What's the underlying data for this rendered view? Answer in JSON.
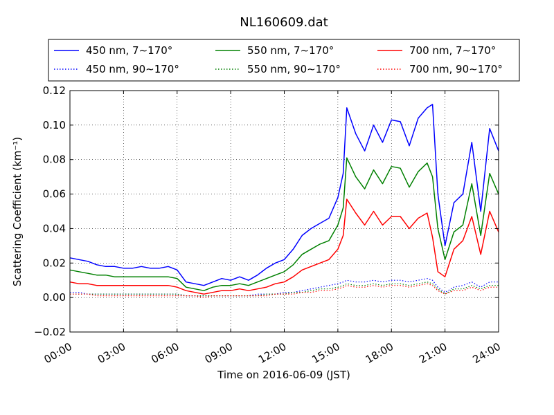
{
  "chart_data": {
    "type": "line",
    "title": "NL160609.dat",
    "xlabel": "Time on 2016-06-09 (JST)",
    "ylabel": "Scattering Coefficient (km⁻¹)",
    "xlim": [
      0,
      24
    ],
    "ylim": [
      -0.02,
      0.12
    ],
    "x_tick_labels": [
      "00:00",
      "03:00",
      "06:00",
      "09:00",
      "12:00",
      "15:00",
      "18:00",
      "21:00",
      "24:00"
    ],
    "y_tick_labels": [
      "−0.02",
      "0.00",
      "0.02",
      "0.04",
      "0.06",
      "0.08",
      "0.10",
      "0.12"
    ],
    "grid": true,
    "legend_placement": "top, above plot",
    "x": [
      0,
      0.5,
      1,
      1.5,
      2,
      2.5,
      3,
      3.5,
      4,
      4.5,
      5,
      5.5,
      6,
      6.5,
      7,
      7.5,
      8,
      8.5,
      9,
      9.5,
      10,
      10.5,
      11,
      11.5,
      12,
      12.5,
      13,
      13.5,
      14,
      14.5,
      15,
      15.3,
      15.5,
      16,
      16.5,
      17,
      17.5,
      18,
      18.5,
      19,
      19.5,
      20,
      20.3,
      20.6,
      21,
      21.5,
      22,
      22.5,
      23,
      23.5,
      24
    ],
    "series": [
      {
        "name": "450 nm, 7∼170°",
        "color": "#0000ff",
        "style": "solid",
        "values": [
          0.023,
          0.022,
          0.021,
          0.019,
          0.018,
          0.018,
          0.017,
          0.017,
          0.018,
          0.017,
          0.017,
          0.018,
          0.016,
          0.009,
          0.008,
          0.007,
          0.009,
          0.011,
          0.01,
          0.012,
          0.01,
          0.013,
          0.017,
          0.02,
          0.022,
          0.028,
          0.036,
          0.04,
          0.043,
          0.046,
          0.058,
          0.072,
          0.11,
          0.095,
          0.085,
          0.1,
          0.09,
          0.103,
          0.102,
          0.088,
          0.104,
          0.11,
          0.112,
          0.06,
          0.03,
          0.055,
          0.06,
          0.09,
          0.05,
          0.098,
          0.085
        ]
      },
      {
        "name": "450 nm, 90∼170°",
        "color": "#0000ff",
        "style": "dotted",
        "values": [
          0.003,
          0.003,
          0.002,
          0.002,
          0.002,
          0.002,
          0.002,
          0.002,
          0.002,
          0.002,
          0.002,
          0.002,
          0.002,
          0.001,
          0.001,
          0.001,
          0.001,
          0.001,
          0.001,
          0.001,
          0.001,
          0.002,
          0.002,
          0.002,
          0.003,
          0.003,
          0.004,
          0.005,
          0.006,
          0.007,
          0.008,
          0.009,
          0.01,
          0.009,
          0.009,
          0.01,
          0.009,
          0.01,
          0.01,
          0.009,
          0.01,
          0.011,
          0.01,
          0.006,
          0.003,
          0.006,
          0.007,
          0.009,
          0.006,
          0.009,
          0.009
        ]
      },
      {
        "name": "550 nm, 7∼170°",
        "color": "#008000",
        "style": "solid",
        "values": [
          0.016,
          0.015,
          0.014,
          0.013,
          0.013,
          0.012,
          0.012,
          0.012,
          0.012,
          0.012,
          0.012,
          0.012,
          0.011,
          0.006,
          0.005,
          0.004,
          0.006,
          0.007,
          0.007,
          0.008,
          0.007,
          0.009,
          0.011,
          0.013,
          0.015,
          0.019,
          0.025,
          0.028,
          0.031,
          0.033,
          0.042,
          0.052,
          0.081,
          0.07,
          0.063,
          0.074,
          0.066,
          0.076,
          0.075,
          0.064,
          0.073,
          0.078,
          0.07,
          0.04,
          0.022,
          0.038,
          0.042,
          0.066,
          0.036,
          0.072,
          0.06
        ]
      },
      {
        "name": "550 nm, 90∼170°",
        "color": "#008000",
        "style": "dotted",
        "values": [
          0.002,
          0.002,
          0.002,
          0.002,
          0.002,
          0.002,
          0.002,
          0.002,
          0.002,
          0.002,
          0.002,
          0.002,
          0.002,
          0.001,
          0.001,
          0.001,
          0.001,
          0.001,
          0.001,
          0.001,
          0.001,
          0.001,
          0.002,
          0.002,
          0.002,
          0.003,
          0.003,
          0.004,
          0.005,
          0.005,
          0.006,
          0.007,
          0.008,
          0.007,
          0.007,
          0.008,
          0.007,
          0.008,
          0.008,
          0.007,
          0.008,
          0.009,
          0.008,
          0.005,
          0.002,
          0.005,
          0.005,
          0.007,
          0.005,
          0.007,
          0.007
        ]
      },
      {
        "name": "700 nm, 7∼170°",
        "color": "#ff0000",
        "style": "solid",
        "values": [
          0.009,
          0.008,
          0.008,
          0.007,
          0.007,
          0.007,
          0.007,
          0.007,
          0.007,
          0.007,
          0.007,
          0.007,
          0.006,
          0.004,
          0.003,
          0.002,
          0.003,
          0.004,
          0.004,
          0.005,
          0.004,
          0.005,
          0.006,
          0.008,
          0.009,
          0.012,
          0.016,
          0.018,
          0.02,
          0.022,
          0.028,
          0.036,
          0.057,
          0.049,
          0.042,
          0.05,
          0.042,
          0.047,
          0.047,
          0.04,
          0.046,
          0.049,
          0.035,
          0.015,
          0.012,
          0.028,
          0.033,
          0.047,
          0.025,
          0.05,
          0.038
        ]
      },
      {
        "name": "700 nm, 90∼170°",
        "color": "#ff0000",
        "style": "dotted",
        "values": [
          0.002,
          0.002,
          0.002,
          0.001,
          0.001,
          0.001,
          0.001,
          0.001,
          0.001,
          0.001,
          0.001,
          0.001,
          0.001,
          0.001,
          0.001,
          0.0,
          0.001,
          0.001,
          0.001,
          0.001,
          0.001,
          0.001,
          0.001,
          0.002,
          0.002,
          0.002,
          0.003,
          0.003,
          0.004,
          0.004,
          0.005,
          0.006,
          0.007,
          0.006,
          0.006,
          0.007,
          0.006,
          0.007,
          0.007,
          0.006,
          0.007,
          0.008,
          0.007,
          0.004,
          0.002,
          0.004,
          0.004,
          0.006,
          0.004,
          0.006,
          0.006
        ]
      }
    ]
  }
}
